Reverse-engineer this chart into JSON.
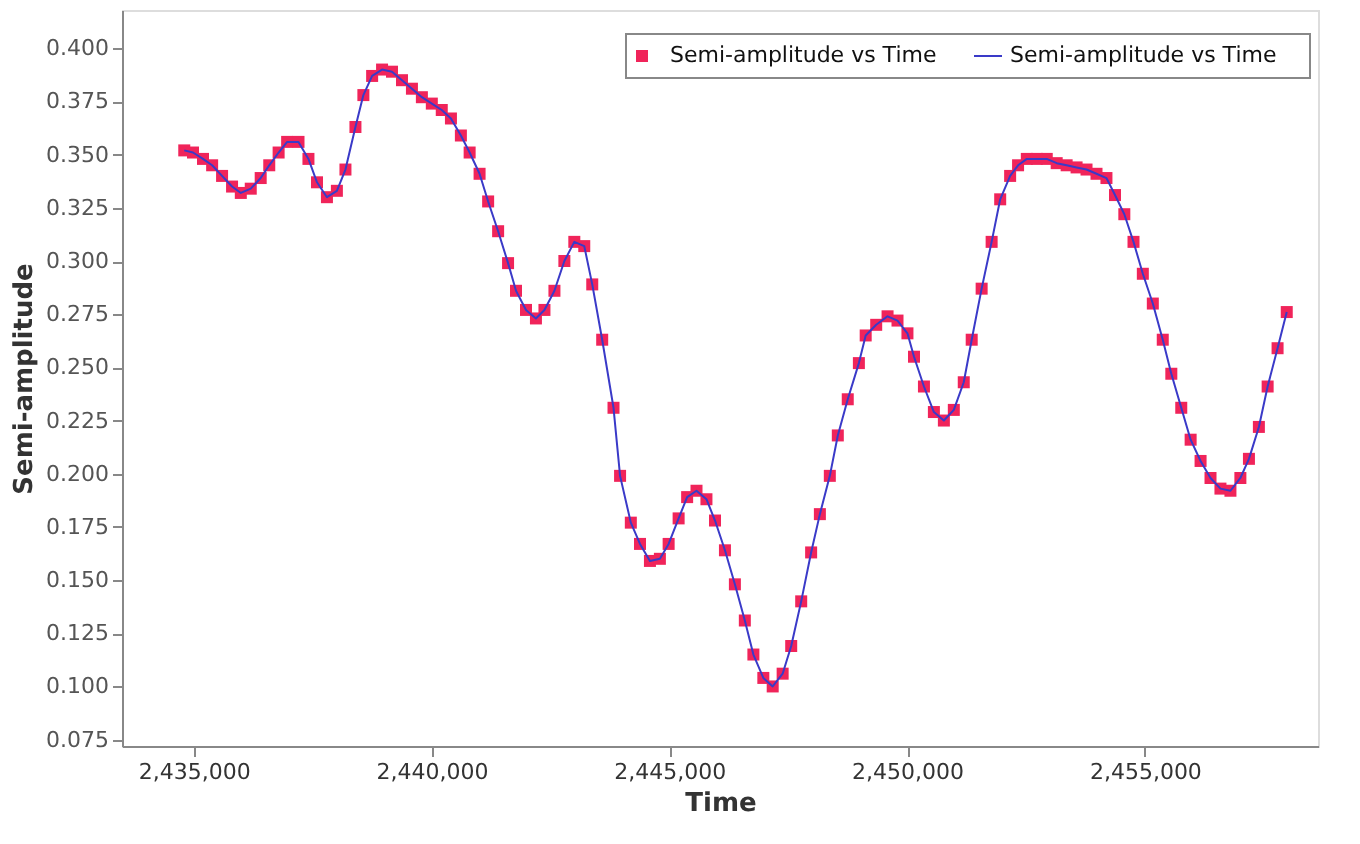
{
  "chart_data": {
    "type": "scatter",
    "xlabel": "Time",
    "ylabel": "Semi-amplitude",
    "x": [
      2434803,
      2434987,
      2435197,
      2435389,
      2435598,
      2435808,
      2435992,
      2436201,
      2436410,
      2436590,
      2436787,
      2436966,
      2437205,
      2437414,
      2437594,
      2437803,
      2438012,
      2438192,
      2438402,
      2438569,
      2438753,
      2438962,
      2439171,
      2439381,
      2439590,
      2439799,
      2440008,
      2440217,
      2440410,
      2440619,
      2440803,
      2441012,
      2441192,
      2441402,
      2441611,
      2441778,
      2441988,
      2442197,
      2442376,
      2442586,
      2442795,
      2443004,
      2443213,
      2443381,
      2443590,
      2443828,
      2443966,
      2444192,
      2444385,
      2444594,
      2444803,
      2444987,
      2445197,
      2445376,
      2445573,
      2445782,
      2445962,
      2446171,
      2446380,
      2446589,
      2446769,
      2446978,
      2447175,
      2447384,
      2447564,
      2447774,
      2447983,
      2448167,
      2448376,
      2448544,
      2448753,
      2448987,
      2449130,
      2449351,
      2449590,
      2449799,
      2450008,
      2450146,
      2450355,
      2450564,
      2450774,
      2450983,
      2451192,
      2451359,
      2451568,
      2451778,
      2451958,
      2452167,
      2452334,
      2452518,
      2452728,
      2452937,
      2453146,
      2453355,
      2453564,
      2453773,
      2453983,
      2454192,
      2454372,
      2454568,
      2454761,
      2454957,
      2455167,
      2455376,
      2455556,
      2455765,
      2455962,
      2456171,
      2456380,
      2456589,
      2456799,
      2457008,
      2457188,
      2457397,
      2457581,
      2457790,
      2457983
    ],
    "series": [
      {
        "name": "Semi-amplitude vs Time",
        "marker": "square",
        "color": "#f0245a",
        "values": [
          0.352,
          0.351,
          0.348,
          0.345,
          0.34,
          0.335,
          0.332,
          0.334,
          0.339,
          0.345,
          0.351,
          0.356,
          0.356,
          0.348,
          0.337,
          0.33,
          0.333,
          0.343,
          0.363,
          0.378,
          0.387,
          0.39,
          0.389,
          0.385,
          0.381,
          0.377,
          0.374,
          0.371,
          0.367,
          0.359,
          0.351,
          0.341,
          0.328,
          0.314,
          0.299,
          0.286,
          0.277,
          0.273,
          0.277,
          0.286,
          0.3,
          0.309,
          0.307,
          0.289,
          0.263,
          0.231,
          0.199,
          0.177,
          0.167,
          0.159,
          0.16,
          0.167,
          0.179,
          0.189,
          0.192,
          0.188,
          0.178,
          0.164,
          0.148,
          0.131,
          0.115,
          0.104,
          0.1,
          0.106,
          0.119,
          0.14,
          0.163,
          0.181,
          0.199,
          0.218,
          0.235,
          0.252,
          0.265,
          0.27,
          0.274,
          0.272,
          0.266,
          0.255,
          0.241,
          0.229,
          0.225,
          0.23,
          0.243,
          0.263,
          0.287,
          0.309,
          0.329,
          0.34,
          0.345,
          0.348,
          0.348,
          0.348,
          0.346,
          0.345,
          0.344,
          0.343,
          0.341,
          0.339,
          0.331,
          0.322,
          0.309,
          0.294,
          0.28,
          0.263,
          0.247,
          0.231,
          0.216,
          0.206,
          0.198,
          0.193,
          0.192,
          0.198,
          0.207,
          0.222,
          0.241,
          0.259,
          0.276
        ]
      },
      {
        "name": "Semi-amplitude vs Time",
        "type": "line",
        "marker": "none",
        "line_style": "solid",
        "color": "#3a3ac8",
        "values": [
          0.352,
          0.351,
          0.348,
          0.345,
          0.34,
          0.335,
          0.332,
          0.334,
          0.339,
          0.345,
          0.351,
          0.356,
          0.356,
          0.348,
          0.337,
          0.33,
          0.333,
          0.343,
          0.363,
          0.378,
          0.387,
          0.39,
          0.389,
          0.385,
          0.381,
          0.377,
          0.374,
          0.371,
          0.367,
          0.359,
          0.351,
          0.341,
          0.328,
          0.314,
          0.299,
          0.286,
          0.277,
          0.273,
          0.277,
          0.286,
          0.3,
          0.309,
          0.307,
          0.289,
          0.263,
          0.231,
          0.199,
          0.177,
          0.167,
          0.159,
          0.16,
          0.167,
          0.179,
          0.189,
          0.192,
          0.188,
          0.178,
          0.164,
          0.148,
          0.131,
          0.115,
          0.104,
          0.1,
          0.106,
          0.119,
          0.14,
          0.163,
          0.181,
          0.199,
          0.218,
          0.235,
          0.252,
          0.265,
          0.27,
          0.274,
          0.272,
          0.266,
          0.255,
          0.241,
          0.229,
          0.225,
          0.23,
          0.243,
          0.263,
          0.287,
          0.309,
          0.329,
          0.34,
          0.345,
          0.348,
          0.348,
          0.348,
          0.346,
          0.345,
          0.344,
          0.343,
          0.341,
          0.339,
          0.331,
          0.322,
          0.309,
          0.294,
          0.28,
          0.263,
          0.247,
          0.231,
          0.216,
          0.206,
          0.198,
          0.193,
          0.192,
          0.198,
          0.207,
          0.222,
          0.241,
          0.259,
          0.276
        ]
      }
    ],
    "xlim": [
      2433494,
      2458640
    ],
    "xticks": [
      {
        "value": 2435000,
        "label": "2,435,000"
      },
      {
        "value": 2440000,
        "label": "2,440,000"
      },
      {
        "value": 2445000,
        "label": "2,445,000"
      },
      {
        "value": 2450000,
        "label": "2,450,000"
      },
      {
        "value": 2455000,
        "label": "2,455,000"
      }
    ],
    "ylim": [
      0.072,
      0.418
    ],
    "yticks": [
      {
        "value": 0.075,
        "label": "0.075"
      },
      {
        "value": 0.1,
        "label": "0.100"
      },
      {
        "value": 0.125,
        "label": "0.125"
      },
      {
        "value": 0.15,
        "label": "0.150"
      },
      {
        "value": 0.175,
        "label": "0.175"
      },
      {
        "value": 0.2,
        "label": "0.200"
      },
      {
        "value": 0.225,
        "label": "0.225"
      },
      {
        "value": 0.25,
        "label": "0.250"
      },
      {
        "value": 0.275,
        "label": "0.275"
      },
      {
        "value": 0.3,
        "label": "0.300"
      },
      {
        "value": 0.325,
        "label": "0.325"
      },
      {
        "value": 0.35,
        "label": "0.350"
      },
      {
        "value": 0.375,
        "label": "0.375"
      },
      {
        "value": 0.4,
        "label": "0.400"
      }
    ],
    "grid": false,
    "legend": "top right"
  }
}
